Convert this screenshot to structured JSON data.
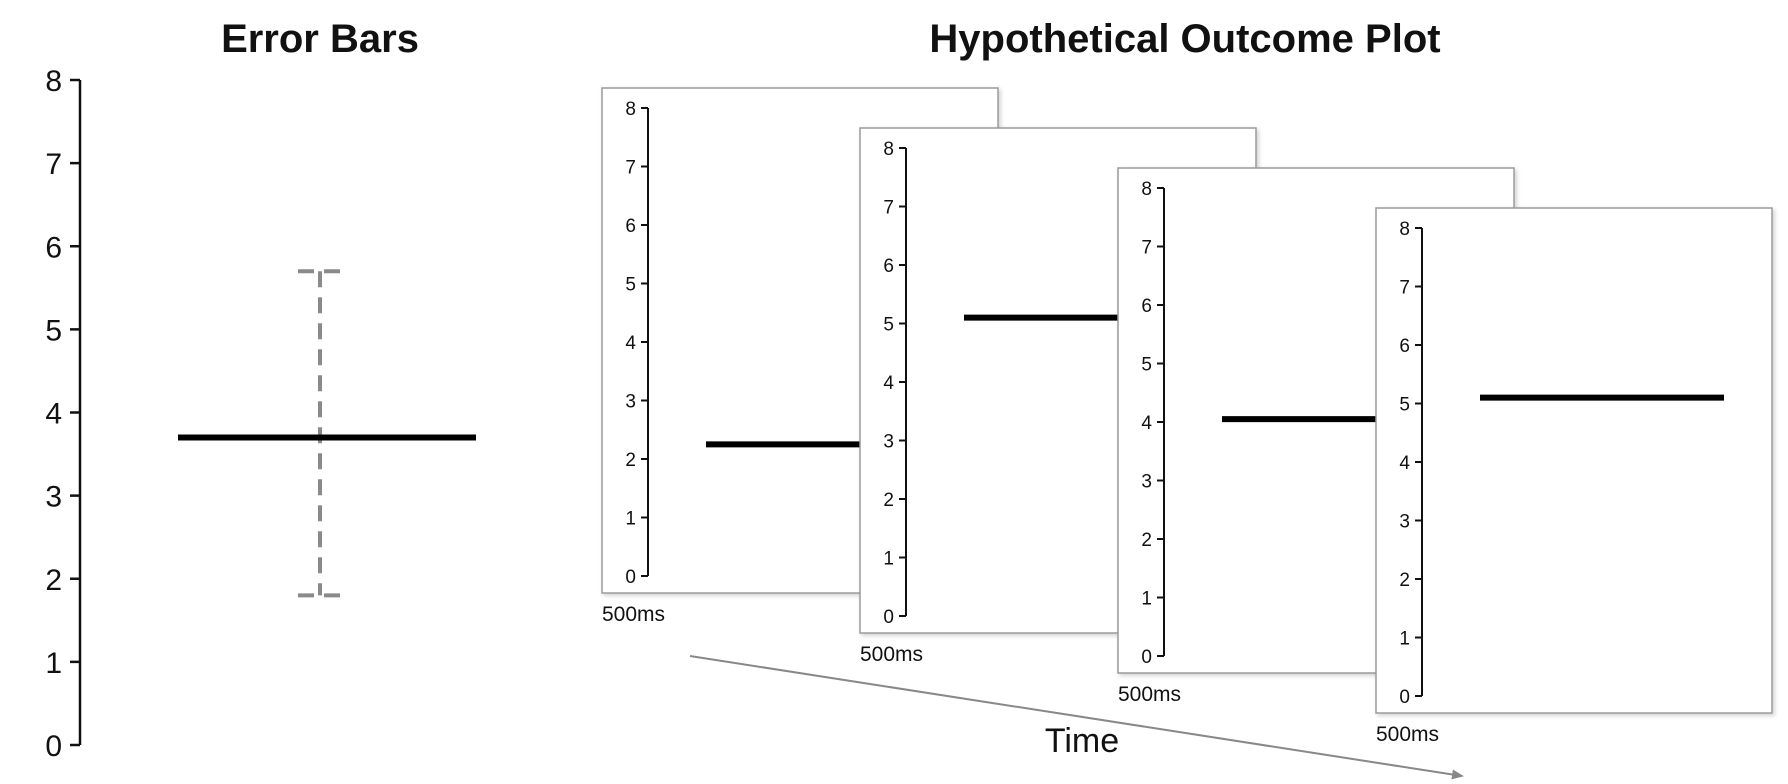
{
  "chart_data": [
    {
      "type": "errorbar",
      "title": "Error Bars",
      "ylim": [
        0,
        8
      ],
      "yticks": [
        "0",
        "1",
        "2",
        "3",
        "4",
        "5",
        "6",
        "7",
        "8"
      ],
      "mean": 3.7,
      "interval": [
        1.8,
        5.7
      ]
    },
    {
      "type": "hypothetical-outcome-plot",
      "title": "Hypothetical Outcome Plot",
      "ylim": [
        0,
        8
      ],
      "yticks": [
        "0",
        "1",
        "2",
        "3",
        "4",
        "5",
        "6",
        "7",
        "8"
      ],
      "frames": [
        {
          "duration": "500ms",
          "value": 2.25
        },
        {
          "duration": "500ms",
          "value": 5.1
        },
        {
          "duration": "500ms",
          "value": 4.05
        },
        {
          "duration": "500ms",
          "value": 5.1
        }
      ],
      "xlabel": "Time"
    }
  ]
}
